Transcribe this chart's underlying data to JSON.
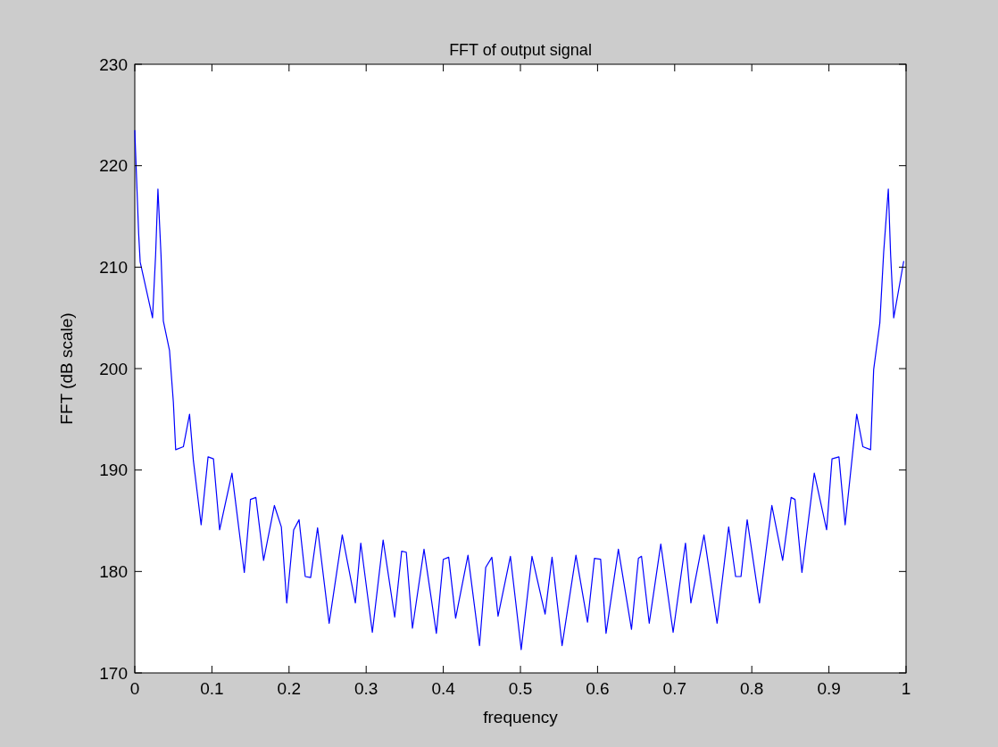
{
  "chart_data": {
    "type": "line",
    "title": "FFT of output signal",
    "xlabel": "frequency",
    "ylabel": "FFT (dB scale)",
    "xlim": [
      0,
      1
    ],
    "ylim": [
      170,
      230
    ],
    "xticks": [
      {
        "value": 0,
        "label": "0"
      },
      0.1,
      0.2,
      0.3,
      0.4,
      0.5,
      0.6,
      0.7,
      0.8,
      0.9,
      1
    ],
    "yticks": [
      170,
      180,
      190,
      200,
      210,
      220,
      230
    ],
    "series": [
      {
        "color": "#0000ff",
        "x": [
          0,
          0.001,
          0.005,
          0.007,
          0.023,
          0.027,
          0.03,
          0.034,
          0.037,
          0.045,
          0.05,
          0.053,
          0.063,
          0.071,
          0.076,
          0.086,
          0.095,
          0.102,
          0.11,
          0.126,
          0.142,
          0.15,
          0.157,
          0.167,
          0.181,
          0.19,
          0.197,
          0.206,
          0.213,
          0.221,
          0.228,
          0.237,
          0.252,
          0.269,
          0.286,
          0.293,
          0.308,
          0.322,
          0.337,
          0.346,
          0.352,
          0.36,
          0.375,
          0.391,
          0.4,
          0.407,
          0.416,
          0.432,
          0.447,
          0.455,
          0.463,
          0.471,
          0.487,
          0.501,
          0.515,
          0.532,
          0.541,
          0.554,
          0.572,
          0.587,
          0.596,
          0.604,
          0.611,
          0.627,
          0.644,
          0.653,
          0.657,
          0.667,
          0.682,
          0.698,
          0.714,
          0.721,
          0.738,
          0.755,
          0.77,
          0.779,
          0.786,
          0.794,
          0.81,
          0.826,
          0.84,
          0.851,
          0.856,
          0.865,
          0.881,
          0.897,
          0.904,
          0.913,
          0.921,
          0.936,
          0.944,
          0.954,
          0.958,
          0.966,
          0.971,
          0.977,
          0.98,
          0.984,
          0.997
        ],
        "values": [
          223.5,
          221.4,
          213.3,
          210.5,
          205.0,
          211.2,
          217.7,
          211.2,
          204.7,
          201.8,
          196.7,
          192.0,
          192.3,
          195.5,
          190.9,
          184.6,
          191.3,
          191.1,
          184.1,
          189.7,
          179.9,
          187.1,
          187.3,
          181.1,
          186.5,
          184.4,
          176.9,
          184.1,
          185.1,
          179.5,
          179.4,
          184.3,
          174.9,
          183.6,
          176.9,
          182.8,
          174.0,
          183.1,
          175.5,
          182.0,
          181.9,
          174.4,
          182.2,
          173.9,
          181.2,
          181.4,
          175.4,
          181.6,
          172.7,
          180.4,
          181.4,
          175.6,
          181.5,
          172.3,
          181.5,
          175.8,
          181.4,
          172.7,
          181.6,
          175.0,
          181.3,
          181.2,
          173.9,
          182.2,
          174.3,
          181.3,
          181.5,
          174.9,
          182.7,
          174.0,
          182.8,
          176.9,
          183.6,
          174.9,
          184.4,
          179.5,
          179.5,
          185.1,
          176.9,
          186.5,
          181.1,
          187.3,
          187.1,
          179.9,
          189.7,
          184.1,
          191.1,
          191.3,
          184.6,
          195.5,
          192.3,
          192.0,
          199.9,
          204.5,
          211.5,
          217.7,
          211.2,
          205.0,
          210.6
        ]
      }
    ]
  }
}
